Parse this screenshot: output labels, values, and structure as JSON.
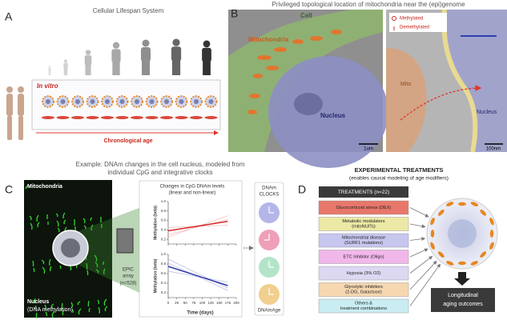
{
  "panel_a": {
    "letter": "A",
    "title": "Cellular Lifespan System",
    "in_vitro": "In vitro",
    "axis_label": "Chronological age"
  },
  "panel_b": {
    "letter": "B",
    "title": "Privileged topological location of mitochondria near the (epi)genome",
    "cell": "Cell",
    "mitochondria": "Mitochondria",
    "nucleus": "Nucleus",
    "scale_left": "1um",
    "methylated": "Methylated",
    "demethylated": "Demethylated",
    "mito": "Mito",
    "nucleus_right": "Nucleus",
    "scale_right": "100nm"
  },
  "middle_title": [
    "Example: DNAm changes in the cell nucleus, modeled from",
    "individual CpG and integrative clocks"
  ],
  "panel_c": {
    "letter": "C",
    "mitochondria": "Mitochondria",
    "nucleus": [
      "Nucleus",
      "(DNA methylation)"
    ],
    "array": [
      "EPIC",
      "array",
      "(n=528)"
    ],
    "plot_title": [
      "Changes in CpG DNAm levels",
      "(linear and non-linear)"
    ],
    "xlabel": "Time (days)",
    "xlim": [
      0,
      200
    ],
    "xticks": [
      0,
      25,
      50,
      75,
      100,
      125,
      150,
      175,
      200
    ],
    "plots": [
      {
        "type": "line",
        "ylabel": "Methylation (beta)",
        "ylim": [
          0.1,
          1.0
        ],
        "yticks": [
          {
            "value": 0.2,
            "label": "0.2"
          },
          {
            "value": 0.4,
            "label": "0.4"
          },
          {
            "value": 0.6,
            "label": "0.6"
          },
          {
            "value": 0.8,
            "label": "0.8"
          },
          {
            "value": 1.0,
            "label": "1.0"
          }
        ],
        "series": [
          {
            "color": "#f2b5b5",
            "x": [
              0,
              175
            ],
            "values": [
              0.25,
              0.7
            ]
          },
          {
            "color": "#f2b5b5",
            "x": [
              0,
              175
            ],
            "values": [
              0.45,
              0.5
            ]
          },
          {
            "color": "#f2b5b5",
            "x": [
              0,
              175
            ],
            "values": [
              0.3,
              0.62
            ]
          },
          {
            "color": "#d42a2a",
            "x": [
              0,
              175
            ],
            "values": [
              0.38,
              0.58
            ]
          }
        ]
      },
      {
        "type": "line",
        "ylabel": "Methylation (beta)",
        "ylim": [
          0.1,
          1.0
        ],
        "yticks": [
          {
            "value": 0.2,
            "label": "0.2"
          },
          {
            "value": 0.4,
            "label": "0.4"
          },
          {
            "value": 0.6,
            "label": "0.6"
          },
          {
            "value": 0.8,
            "label": "0.8"
          },
          {
            "value": 1.0,
            "label": "1.0"
          }
        ],
        "series": [
          {
            "color": "#b8bce6",
            "x": [
              0,
              175
            ],
            "values": [
              0.9,
              0.3
            ]
          },
          {
            "color": "#b8bce6",
            "x": [
              0,
              175
            ],
            "values": [
              0.65,
              0.42
            ]
          },
          {
            "color": "#b8bce6",
            "x": [
              0,
              175
            ],
            "values": [
              0.82,
              0.25
            ]
          },
          {
            "color": "#2f3aa8",
            "x": [
              0,
              175
            ],
            "values": [
              0.75,
              0.35
            ]
          }
        ]
      }
    ],
    "clocks_title": [
      "DNAm",
      "CLOCKS"
    ],
    "clocks_label": "DNAmAge"
  },
  "panel_d": {
    "letter": "D",
    "title": "EXPERIMENTAL TREATMENTS",
    "subtitle": "(enables causal modeling of age modifiers)",
    "header": "TREATMENTS (n=22)",
    "treatments": [
      {
        "lines": [
          "Glucocorticoid stress (DEX)"
        ],
        "color": "#e8776b"
      },
      {
        "lines": [
          "Metabolic modulators",
          "(mitoNUITs)"
        ],
        "color": "#ece9a6"
      },
      {
        "lines": [
          "Mitochondrial disease",
          "(SURF1 mutations)"
        ],
        "color": "#c7c6ef"
      },
      {
        "lines": [
          "ETC Inhibitor (Oligo)"
        ],
        "color": "#f1b7ea"
      },
      {
        "lines": [
          "Hypoxia (3% O2)"
        ],
        "color": "#dcd8f2"
      },
      {
        "lines": [
          "Glycolytic inhibitors",
          "(2-DG, Galactose)"
        ],
        "color": "#f6d7b0"
      },
      {
        "lines": [
          "Others &",
          "treatment combinations"
        ],
        "color": "#c9edf2"
      }
    ],
    "outcome": [
      "Longitudinal",
      "aging outcomes"
    ]
  }
}
